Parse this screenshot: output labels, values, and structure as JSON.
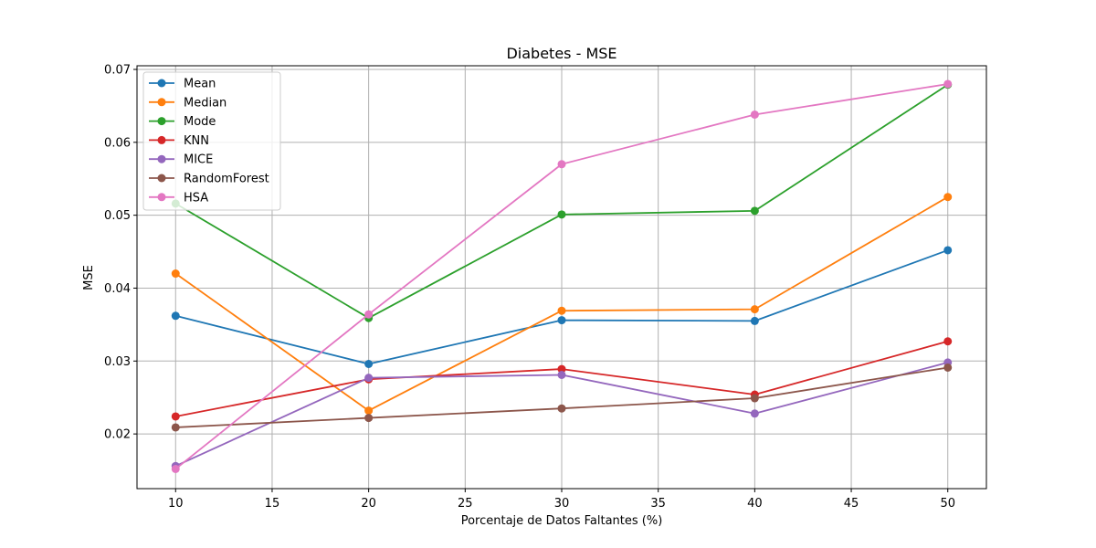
{
  "chart_data": {
    "type": "line",
    "title": "Diabetes - MSE",
    "xlabel": "Porcentaje de Datos Faltantes (%)",
    "ylabel": "MSE",
    "x": [
      10,
      20,
      30,
      40,
      50
    ],
    "xlim": [
      8.0,
      52.0
    ],
    "ylim": [
      0.0125,
      0.0705
    ],
    "xticks": [
      10,
      15,
      20,
      25,
      30,
      35,
      40,
      45,
      50
    ],
    "yticks": [
      0.02,
      0.03,
      0.04,
      0.05,
      0.06,
      0.07
    ],
    "ytick_labels": [
      "0.02",
      "0.03",
      "0.04",
      "0.05",
      "0.06",
      "0.07"
    ],
    "grid": true,
    "legend_position": "top-left",
    "series": [
      {
        "name": "Mean",
        "color": "#1f77b4",
        "values": [
          0.0362,
          0.0296,
          0.0356,
          0.0355,
          0.0452
        ]
      },
      {
        "name": "Median",
        "color": "#ff7f0e",
        "values": [
          0.042,
          0.0232,
          0.0369,
          0.0371,
          0.0525
        ]
      },
      {
        "name": "Mode",
        "color": "#2ca02c",
        "values": [
          0.0516,
          0.0359,
          0.0501,
          0.0506,
          0.0679
        ]
      },
      {
        "name": "KNN",
        "color": "#d62728",
        "values": [
          0.0224,
          0.0275,
          0.0289,
          0.0254,
          0.0327
        ]
      },
      {
        "name": "MICE",
        "color": "#9467bd",
        "values": [
          0.0156,
          0.0277,
          0.0281,
          0.0228,
          0.0298
        ]
      },
      {
        "name": "RandomForest",
        "color": "#8c564b",
        "values": [
          0.0209,
          0.0222,
          0.0235,
          0.0249,
          0.0291
        ]
      },
      {
        "name": "HSA",
        "color": "#e377c2",
        "values": [
          0.0152,
          0.0364,
          0.057,
          0.0638,
          0.068
        ]
      }
    ]
  }
}
